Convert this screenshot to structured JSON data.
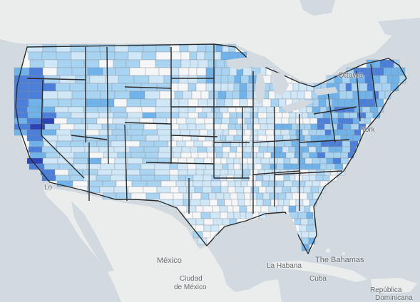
{
  "map": {
    "colors": {
      "water": "#d2dadf",
      "land_outside": "#ebecec",
      "land_us_base": "#f7f8f9",
      "state_border": "#2b2b2b",
      "county_border": "#8c8f93",
      "choropleth": [
        "#f4f6f8",
        "#cfe7f7",
        "#a8d3f1",
        "#6fb3ea",
        "#4b7fd9",
        "#2d44b6",
        "#1b1f8f"
      ]
    },
    "labels": {
      "ottawa": "Ottawa",
      "york": "York",
      "los_angeles": "Lo",
      "mexico": "México",
      "ciudad_de_mexico_1": "Ciudad",
      "ciudad_de_mexico_2": "de México",
      "la_habana": "La Habana",
      "the_bahamas": "The Bahamas",
      "cuba": "Cuba",
      "republica": "República",
      "dominicana": "Dominicana"
    }
  }
}
